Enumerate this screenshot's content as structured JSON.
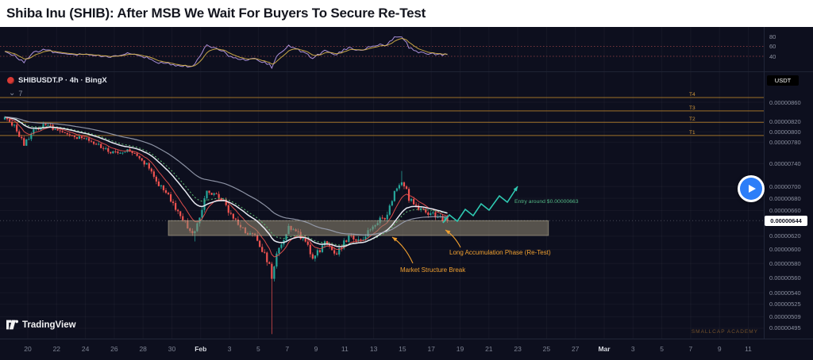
{
  "page": {
    "title": "Shiba Inu (SHIB): After MSB We Wait For Buyers To Secure Re-Test"
  },
  "chart": {
    "legend": {
      "symbol": "SHIBUSDT.P · 4h · BingX",
      "indicator_count": "7"
    },
    "currency_badge": "USDT",
    "last_price": "0.00000644",
    "tradingview_watermark": "TradingView",
    "brand_watermark": "SMALLCAP ACADEMY",
    "colors": {
      "background": "#0d0f1e",
      "candle_up": "#26a69a",
      "candle_down": "#ef5350",
      "ma_fast": "#ef5350",
      "ma_mid": "#e8eaf2",
      "ma_slow": "#9aa1b2",
      "ma_dotted": "#5cb870",
      "oscillator": "#a98fd8",
      "oscillator_signal": "#d9b64a",
      "levels": "#c05050",
      "t_line": "#b07d2a",
      "t_line_label": "#d79b3a",
      "zone_fill": "rgba(148,139,115,0.55)",
      "zone_border": "rgba(190,180,150,0.7)",
      "projection": "#2fc9b2",
      "annotation_orange": "#f0a030",
      "annotation_green": "#54b987",
      "grid": "rgba(140,145,160,0.07)",
      "axis_text": "#8b90a0"
    }
  },
  "chart_data": {
    "type": "candlestick",
    "symbol": "SHIBUSDT.P",
    "timeframe": "4h",
    "exchange": "BingX",
    "quote_currency": "USDT",
    "last_price": 6.44e-06,
    "price_scale_ticks": [
      {
        "label": "0.00000860",
        "e6": 8.6
      },
      {
        "label": "0.00000820",
        "e6": 8.2
      },
      {
        "label": "0.00000800",
        "e6": 8.0
      },
      {
        "label": "0.00000780",
        "e6": 7.8
      },
      {
        "label": "0.00000740",
        "e6": 7.4
      },
      {
        "label": "0.00000700",
        "e6": 7.0
      },
      {
        "label": "0.00000680",
        "e6": 6.8
      },
      {
        "label": "0.00000660",
        "e6": 6.6
      },
      {
        "label": "0.00000620",
        "e6": 6.2
      },
      {
        "label": "0.00000600",
        "e6": 6.0
      },
      {
        "label": "0.00000580",
        "e6": 5.8
      },
      {
        "label": "0.00000560",
        "e6": 5.6
      },
      {
        "label": "0.00000540",
        "e6": 5.4
      },
      {
        "label": "0.00000525",
        "e6": 5.25
      },
      {
        "label": "0.00000509",
        "e6": 5.09
      },
      {
        "label": "0.00000495",
        "e6": 4.95
      }
    ],
    "indicator_scale_ticks": [
      {
        "label": "80",
        "value": 80
      },
      {
        "label": "60",
        "value": 60
      },
      {
        "label": "40",
        "value": 40
      }
    ],
    "indicator_levels": [
      60,
      40
    ],
    "time_axis": [
      "20",
      "22",
      "24",
      "26",
      "28",
      "30",
      "Feb",
      "3",
      "5",
      "7",
      "9",
      "11",
      "13",
      "15",
      "17",
      "19",
      "21",
      "23",
      "25",
      "27",
      "Mar",
      "3",
      "5",
      "7",
      "9",
      "11"
    ],
    "major_time_labels": [
      "Feb",
      "Mar"
    ],
    "t_lines": [
      {
        "label": "T4",
        "price_e6": 8.7
      },
      {
        "label": "T3",
        "price_e6": 8.42
      },
      {
        "label": "T2",
        "price_e6": 8.19
      },
      {
        "label": "T1",
        "price_e6": 7.93
      }
    ],
    "support_zone": {
      "price_top_e6": 6.44,
      "price_bottom_e6": 6.21,
      "start_index": 68,
      "end_index": 226
    },
    "trend_keypoints_e6": [
      [
        0,
        8.25
      ],
      [
        4,
        8.1
      ],
      [
        8,
        7.75
      ],
      [
        12,
        8.05
      ],
      [
        18,
        8.15
      ],
      [
        24,
        7.95
      ],
      [
        31,
        7.9
      ],
      [
        38,
        7.75
      ],
      [
        44,
        7.6
      ],
      [
        50,
        7.65
      ],
      [
        56,
        7.5
      ],
      [
        60,
        7.35
      ],
      [
        64,
        7.05
      ],
      [
        68,
        6.85
      ],
      [
        72,
        6.55
      ],
      [
        76,
        6.35
      ],
      [
        79,
        6.25
      ],
      [
        82,
        6.6
      ],
      [
        84,
        6.95
      ],
      [
        87,
        6.85
      ],
      [
        90,
        6.8
      ],
      [
        93,
        6.6
      ],
      [
        97,
        6.4
      ],
      [
        101,
        6.25
      ],
      [
        104,
        6.2
      ],
      [
        107,
        6.0
      ],
      [
        110,
        5.75
      ],
      [
        111,
        5.55
      ],
      [
        113,
        5.9
      ],
      [
        115,
        6.1
      ],
      [
        118,
        6.35
      ],
      [
        121,
        6.3
      ],
      [
        123,
        6.2
      ],
      [
        126,
        6.05
      ],
      [
        128,
        5.9
      ],
      [
        131,
        6.0
      ],
      [
        133,
        6.1
      ],
      [
        136,
        6.0
      ],
      [
        138,
        5.95
      ],
      [
        141,
        6.1
      ],
      [
        143,
        6.2
      ],
      [
        146,
        6.15
      ],
      [
        148,
        6.1
      ],
      [
        151,
        6.25
      ],
      [
        153,
        6.35
      ],
      [
        156,
        6.45
      ],
      [
        158,
        6.5
      ],
      [
        160,
        6.65
      ],
      [
        162,
        6.9
      ],
      [
        164,
        7.05
      ],
      [
        165,
        7.1
      ],
      [
        167,
        6.95
      ],
      [
        168,
        6.8
      ],
      [
        170,
        6.7
      ],
      [
        171,
        6.65
      ],
      [
        173,
        6.62
      ],
      [
        175,
        6.6
      ],
      [
        177,
        6.55
      ],
      [
        179,
        6.52
      ],
      [
        181,
        6.48
      ],
      [
        183,
        6.45
      ],
      [
        184,
        6.44
      ]
    ],
    "wick_events": [
      {
        "index": 79,
        "low_e6": 6.12
      },
      {
        "index": 111,
        "low_e6": 4.88
      },
      {
        "index": 165,
        "high_e6": 7.27
      }
    ],
    "annotations": {
      "entry": {
        "text": "Entry around $0.00000663"
      },
      "accumulation": {
        "text": "Long Accumulation Phase (Re-Test)"
      },
      "msb": {
        "text": "Market Structure Break"
      }
    },
    "projection": {
      "shape": "zigzag-arrow",
      "direction": "up"
    }
  }
}
